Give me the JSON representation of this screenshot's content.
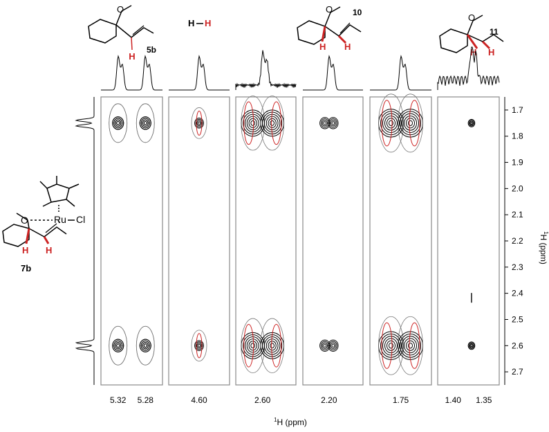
{
  "chart_data": {
    "type": "2D NMR contour plot (projection spectra on top and left)",
    "title": "",
    "xlabel_sup": "1",
    "xlabel": "H (ppm)",
    "ylabel_sup": "1",
    "ylabel": "H (ppm)",
    "y_axis_side": "right",
    "y_range": [
      1.65,
      2.75
    ],
    "y_ticks": [
      "1.7",
      "1.8",
      "1.9",
      "2.0",
      "2.1",
      "2.2",
      "2.3",
      "2.4",
      "2.5",
      "2.6",
      "2.7"
    ],
    "left_projection_peaks_ppm": [
      1.75,
      2.6
    ],
    "contour_colors": {
      "positive": "#000000",
      "negative": "#cc2222",
      "outer": "#777777"
    },
    "panels": [
      {
        "compound": "5b",
        "x_ticks": [
          "5.32",
          "5.28"
        ],
        "cross_peaks": [
          {
            "x": 5.32,
            "y": 1.75
          },
          {
            "x": 5.28,
            "y": 1.75
          },
          {
            "x": 5.32,
            "y": 2.6
          },
          {
            "x": 5.28,
            "y": 2.6
          }
        ]
      },
      {
        "compound": "H–H",
        "x_ticks": [
          "4.60"
        ],
        "cross_peaks": [
          {
            "x": 4.6,
            "y": 1.75
          },
          {
            "x": 4.6,
            "y": 2.6
          }
        ]
      },
      {
        "compound": "",
        "x_ticks": [
          "2.60"
        ],
        "cross_peaks": [
          {
            "x": 2.6,
            "y": 1.75
          },
          {
            "x": 2.6,
            "y": 2.6
          }
        ]
      },
      {
        "compound": "10",
        "x_ticks": [
          "2.20"
        ],
        "cross_peaks": [
          {
            "x": 2.2,
            "y": 1.75
          },
          {
            "x": 2.2,
            "y": 2.6
          }
        ]
      },
      {
        "compound": "",
        "x_ticks": [
          "1.75"
        ],
        "cross_peaks": [
          {
            "x": 1.75,
            "y": 1.75
          },
          {
            "x": 1.75,
            "y": 2.6
          }
        ]
      },
      {
        "compound": "11",
        "x_ticks": [
          "1.40",
          "1.35"
        ],
        "cross_peaks": [
          {
            "x": 1.37,
            "y": 1.75
          },
          {
            "x": 1.37,
            "y": 2.42
          },
          {
            "x": 1.37,
            "y": 2.6
          }
        ]
      }
    ],
    "structure_labels": {
      "left_complex": "7b",
      "left_O": "O",
      "left_Ru": "Ru",
      "left_Cl": "Cl",
      "H": "H",
      "O": "O",
      "dihydrogen_left": "H",
      "dihydrogen_right": "H"
    }
  }
}
